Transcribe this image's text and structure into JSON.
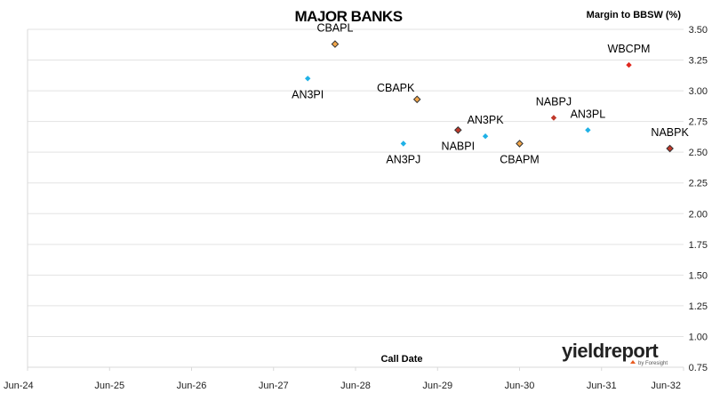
{
  "chart_data": {
    "type": "scatter",
    "title": "MAJOR BANKS",
    "xlabel": "Call Date",
    "ylabel": "Margin to BBSW (%)",
    "x_ticks": [
      "Jun-24",
      "Jun-25",
      "Jun-26",
      "Jun-27",
      "Jun-28",
      "Jun-29",
      "Jun-30",
      "Jun-31",
      "Jun-32"
    ],
    "xlim": [
      "2024-06",
      "2032-06"
    ],
    "ylim": [
      0.75,
      3.5
    ],
    "y_ticks": [
      "0.75",
      "1.00",
      "1.25",
      "1.50",
      "1.75",
      "2.00",
      "2.25",
      "2.50",
      "2.75",
      "3.00",
      "3.25",
      "3.50"
    ],
    "grid": "horizontal",
    "legend": "none",
    "points": [
      {
        "label": "CBAPL",
        "x": "2028-03",
        "y": 3.38,
        "color": "#f2a64a",
        "outline": true,
        "label_pos": "above"
      },
      {
        "label": "AN3PI",
        "x": "2027-11",
        "y": 3.1,
        "color": "#1fb1e6",
        "outline": false,
        "label_pos": "below"
      },
      {
        "label": "CBAPK",
        "x": "2029-03",
        "y": 2.93,
        "color": "#f2a64a",
        "outline": true,
        "label_pos": "above-left"
      },
      {
        "label": "NABPI",
        "x": "2029-09",
        "y": 2.68,
        "color": "#c0392b",
        "outline": true,
        "label_pos": "below"
      },
      {
        "label": "AN3PJ",
        "x": "2029-01",
        "y": 2.57,
        "color": "#1fb1e6",
        "outline": false,
        "label_pos": "below"
      },
      {
        "label": "AN3PK",
        "x": "2030-01",
        "y": 2.63,
        "color": "#1fb1e6",
        "outline": false,
        "label_pos": "above"
      },
      {
        "label": "CBAPM",
        "x": "2030-06",
        "y": 2.57,
        "color": "#f2a64a",
        "outline": true,
        "label_pos": "below"
      },
      {
        "label": "NABPJ",
        "x": "2030-11",
        "y": 2.78,
        "color": "#c0392b",
        "outline": false,
        "label_pos": "above"
      },
      {
        "label": "AN3PL",
        "x": "2031-04",
        "y": 2.68,
        "color": "#1fb1e6",
        "outline": false,
        "label_pos": "above"
      },
      {
        "label": "WBCPM",
        "x": "2031-10",
        "y": 3.21,
        "color": "#e0281f",
        "outline": false,
        "label_pos": "above"
      },
      {
        "label": "NABPK",
        "x": "2032-04",
        "y": 2.53,
        "color": "#c0392b",
        "outline": true,
        "label_pos": "above"
      }
    ]
  },
  "watermark": {
    "brand_main": "yield",
    "brand_accent": "report",
    "byline": "by Foresight",
    "brand_color": "#222222",
    "accent_color": "#e85a1f"
  }
}
